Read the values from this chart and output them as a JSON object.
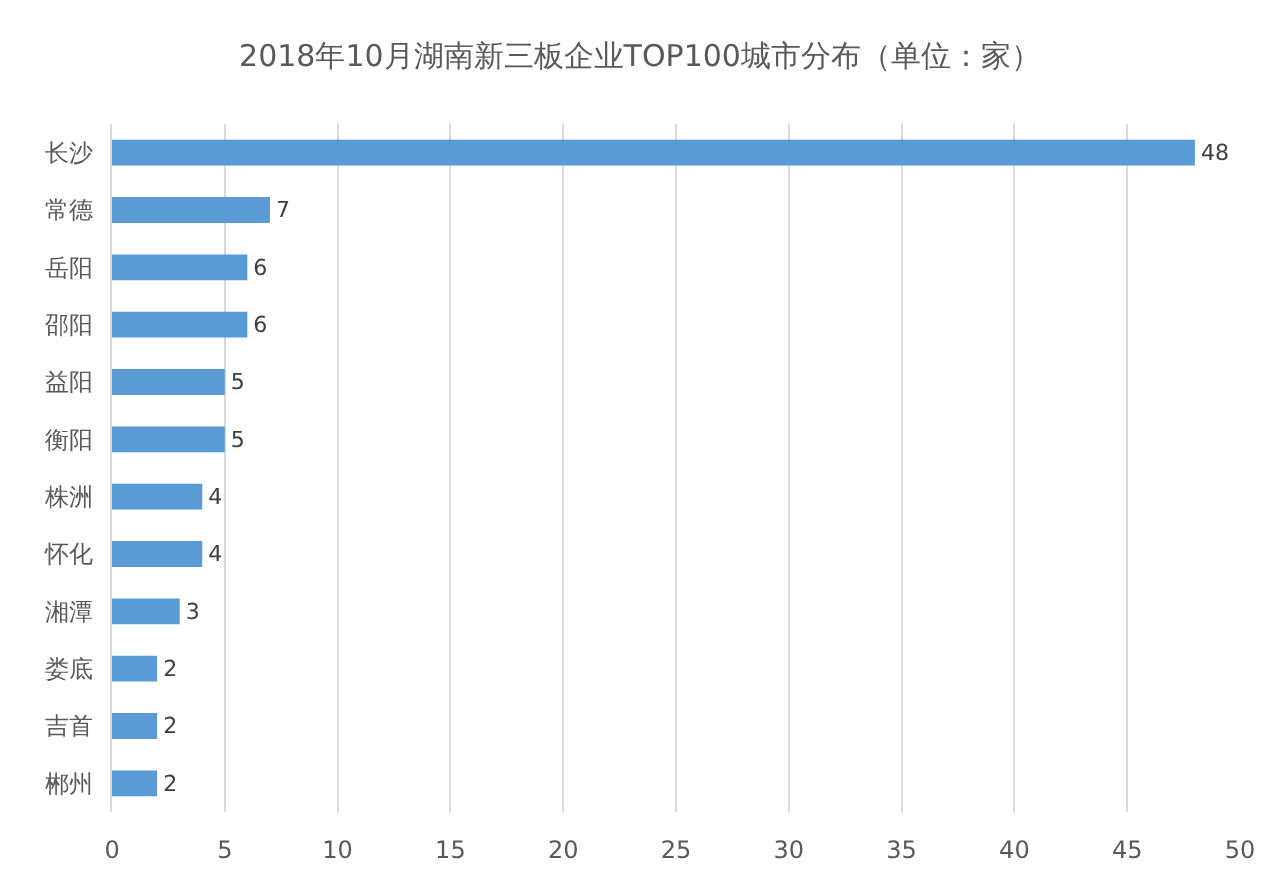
{
  "chart_data": {
    "type": "bar",
    "orientation": "horizontal",
    "title": "2018年10月湖南新三板企业TOP100城市分布（单位：家）",
    "categories": [
      "长沙",
      "常德",
      "岳阳",
      "邵阳",
      "益阳",
      "衡阳",
      "株洲",
      "怀化",
      "湘潭",
      "娄底",
      "吉首",
      "郴州"
    ],
    "values": [
      48,
      7,
      6,
      6,
      5,
      5,
      4,
      4,
      3,
      2,
      2,
      2
    ],
    "color": "#5b9bd5",
    "xlim": [
      0,
      50
    ],
    "xticks": [
      0,
      5,
      10,
      15,
      20,
      25,
      30,
      35,
      40,
      45,
      50
    ],
    "grid": "x",
    "data_labels": true
  }
}
